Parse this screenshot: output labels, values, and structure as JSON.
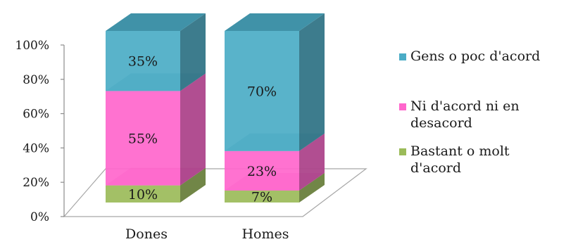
{
  "chart_data": {
    "type": "bar",
    "stacked": true,
    "three_d": true,
    "title": "",
    "xlabel": "",
    "ylabel": "",
    "ylim": [
      0,
      100
    ],
    "y_ticks": [
      "0%",
      "20%",
      "40%",
      "60%",
      "80%",
      "100%"
    ],
    "categories": [
      "Dones",
      "Homes"
    ],
    "series": [
      {
        "name": "Bastant o molt d'acord",
        "values": [
          10,
          7
        ],
        "labels": [
          "10%",
          "7%"
        ],
        "color": "#9BBB59"
      },
      {
        "name": "Ni d'acord ni en desacord",
        "values": [
          55,
          23
        ],
        "labels": [
          "55%",
          "23%"
        ],
        "color": "#FF66CC"
      },
      {
        "name": "Gens o poc d'acord",
        "values": [
          35,
          70
        ],
        "labels": [
          "35%",
          "70%"
        ],
        "color": "#4BACC6"
      }
    ],
    "legend": {
      "position": "right",
      "order": [
        "Gens o poc d'acord",
        "Ni d'acord ni en desacord",
        "Bastant o molt d'acord"
      ]
    },
    "grid": false
  }
}
